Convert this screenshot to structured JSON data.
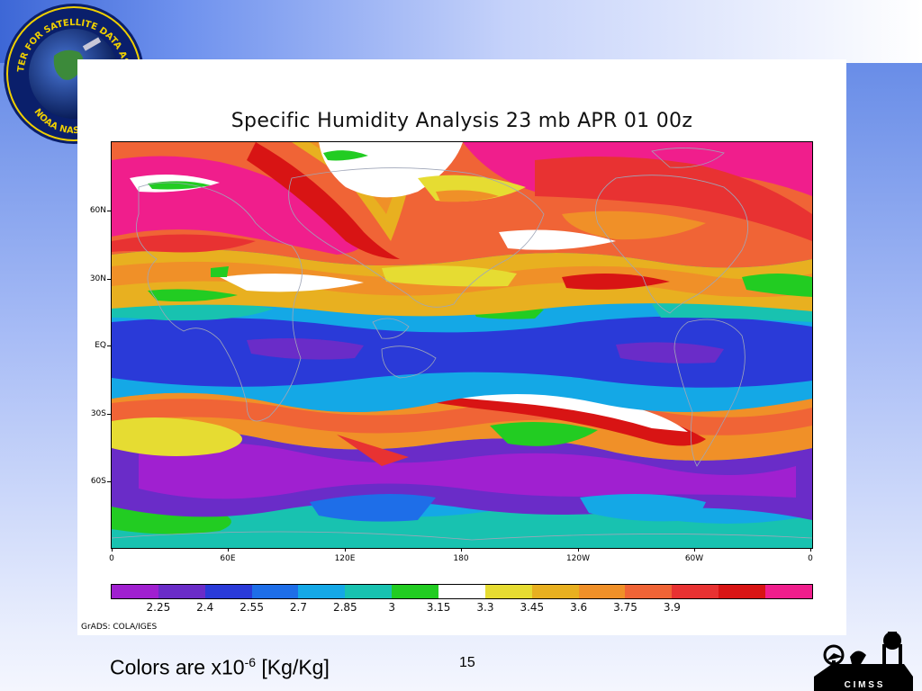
{
  "logo": {
    "text_top": "JOINT CENTER FOR SATELLITE DATA ASSIMILATION",
    "text_bottom": "NOAA NASA JCSDA",
    "icon": "jcsda-logo-icon"
  },
  "map": {
    "title": "Specific Humidity Analysis 23 mb APR 01 00z",
    "lat_labels": [
      "60N",
      "30N",
      "EQ",
      "30S",
      "60S"
    ],
    "lon_labels": [
      "0",
      "60E",
      "120E",
      "180",
      "120W",
      "60W",
      "0"
    ],
    "credit": "GrADS: COLA/IGES"
  },
  "colorbar": {
    "labels": [
      "2.25",
      "2.4",
      "2.55",
      "2.7",
      "2.85",
      "3",
      "3.15",
      "3.3",
      "3.45",
      "3.6",
      "3.75",
      "3.9"
    ],
    "colors": [
      "#a020d0",
      "#6a2cc8",
      "#2a3ad8",
      "#1e6ee8",
      "#14a8e6",
      "#18c2b0",
      "#22cc22",
      "#ffffff",
      "#e6dc32",
      "#e8b020",
      "#f09028",
      "#f06436",
      "#e83232",
      "#d81414",
      "#f01e8c"
    ]
  },
  "caption": {
    "text": "Colors are x10",
    "superscript": "-6",
    "unit": " [Kg/Kg]"
  },
  "page_number": "15",
  "cimss_logo": {
    "text": "C I M S S",
    "icon": "cimss-logo-icon"
  }
}
